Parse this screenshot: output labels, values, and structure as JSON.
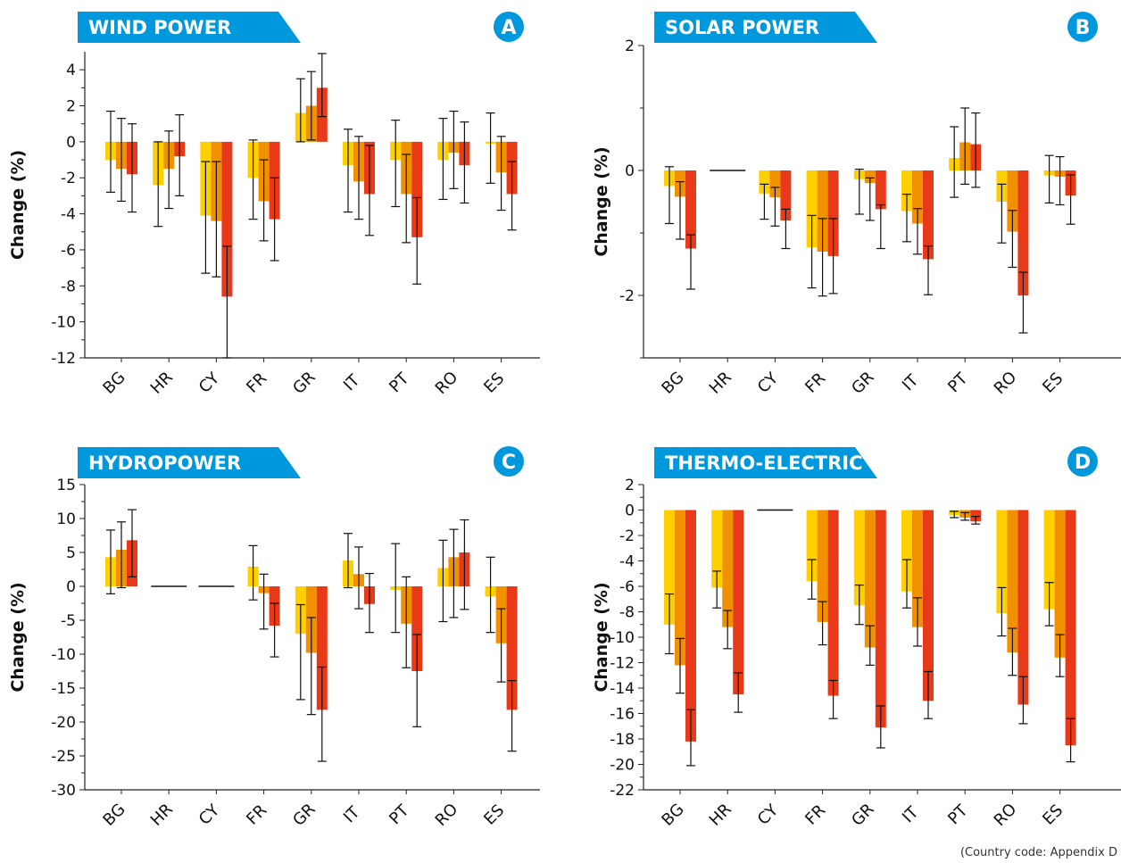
{
  "colors": {
    "banner": "#0098dc",
    "series": [
      "#ffd000",
      "#f29100",
      "#e83a18"
    ]
  },
  "footnote": "(Country code: Appendix D",
  "chart_data": [
    {
      "panel": "A",
      "type": "bar",
      "title": "WIND POWER",
      "ylabel": "Change (%)",
      "ylim": [
        -12,
        5
      ],
      "yticks": [
        4,
        2,
        0,
        -2,
        -4,
        -6,
        -8,
        -10,
        -12
      ],
      "categories": [
        "BG",
        "HR",
        "CY",
        "FR",
        "GR",
        "IT",
        "PT",
        "RO",
        "ES"
      ],
      "series": [
        {
          "values": [
            -1.0,
            -2.4,
            -4.1,
            -2.0,
            1.6,
            -1.3,
            -1.0,
            -1.0,
            -0.1
          ],
          "err_low": [
            -2.8,
            -4.7,
            -7.3,
            -4.3,
            0.0,
            -3.9,
            -3.6,
            -3.2,
            -2.3
          ],
          "err_high": [
            1.7,
            0.0,
            -1.1,
            0.1,
            3.5,
            0.7,
            1.2,
            1.3,
            1.6
          ]
        },
        {
          "values": [
            -1.5,
            -1.5,
            -4.4,
            -3.3,
            2.0,
            -2.2,
            -2.9,
            -0.6,
            -1.7
          ],
          "err_low": [
            -3.3,
            -3.7,
            -7.5,
            -5.5,
            0.1,
            -4.3,
            -5.6,
            -2.6,
            -3.8
          ],
          "err_high": [
            1.3,
            0.6,
            -1.1,
            -1.0,
            3.9,
            0.3,
            -0.7,
            1.7,
            0.3
          ]
        },
        {
          "values": [
            -1.8,
            -0.8,
            -8.6,
            -4.3,
            3.0,
            -2.9,
            -5.3,
            -1.3,
            -2.9
          ],
          "err_low": [
            -3.9,
            -3.0,
            -12.0,
            -6.6,
            1.4,
            -5.2,
            -7.9,
            -3.4,
            -4.9
          ],
          "err_high": [
            1.0,
            1.5,
            -5.8,
            -2.0,
            4.9,
            -0.2,
            -3.1,
            1.1,
            -1.1
          ]
        }
      ]
    },
    {
      "panel": "B",
      "type": "bar",
      "title": "SOLAR POWER",
      "ylabel": "Change (%)",
      "ylim": [
        -3,
        2
      ],
      "yticks": [
        2,
        0,
        -2
      ],
      "categories": [
        "BG",
        "HR",
        "CY",
        "FR",
        "GR",
        "IT",
        "PT",
        "RO",
        "ES"
      ],
      "series": [
        {
          "values": [
            -0.25,
            0.0,
            -0.37,
            -1.23,
            -0.14,
            -0.65,
            0.2,
            -0.5,
            -0.08
          ],
          "err_low": [
            -0.85,
            0.0,
            -0.78,
            -1.88,
            -0.7,
            -1.14,
            -0.43,
            -1.16,
            -0.52
          ],
          "err_high": [
            0.06,
            0.0,
            -0.22,
            -0.72,
            0.02,
            -0.38,
            0.7,
            -0.22,
            0.24
          ]
        },
        {
          "values": [
            -0.42,
            0.0,
            -0.43,
            -1.3,
            -0.2,
            -0.85,
            0.45,
            -0.98,
            -0.1
          ],
          "err_low": [
            -1.1,
            0.0,
            -0.89,
            -2.01,
            -0.8,
            -1.34,
            -0.22,
            -1.55,
            -0.55
          ],
          "err_high": [
            -0.18,
            0.0,
            -0.27,
            -0.77,
            -0.12,
            -0.61,
            1.0,
            -0.64,
            0.22
          ]
        },
        {
          "values": [
            -1.25,
            0.0,
            -0.8,
            -1.37,
            -0.62,
            -1.42,
            0.42,
            -2.0,
            -0.4
          ],
          "err_low": [
            -1.9,
            0.0,
            -1.25,
            -1.97,
            -1.25,
            -1.99,
            -0.27,
            -2.6,
            -0.86
          ],
          "err_high": [
            -1.03,
            0.0,
            -0.62,
            -0.77,
            -0.55,
            -1.21,
            0.92,
            -1.63,
            -0.07
          ]
        }
      ]
    },
    {
      "panel": "C",
      "type": "bar",
      "title": "HYDROPOWER",
      "ylabel": "Change (%)",
      "ylim": [
        -30,
        15
      ],
      "yticks": [
        15,
        10,
        5,
        0,
        -5,
        -10,
        -15,
        -20,
        -25,
        -30
      ],
      "categories": [
        "BG",
        "HR",
        "CY",
        "FR",
        "GR",
        "IT",
        "PT",
        "RO",
        "ES"
      ],
      "series": [
        {
          "values": [
            4.3,
            0.0,
            0.0,
            2.9,
            -7.0,
            3.8,
            -0.5,
            2.7,
            -1.5
          ],
          "err_low": [
            -1.1,
            0.0,
            0.0,
            -2.0,
            -16.7,
            -0.2,
            -6.8,
            -5.2,
            -6.8
          ],
          "err_high": [
            8.3,
            0.0,
            0.0,
            6.0,
            -2.7,
            7.8,
            6.3,
            6.8,
            4.3
          ]
        },
        {
          "values": [
            5.4,
            0.0,
            0.0,
            -1.0,
            -9.8,
            1.8,
            -5.5,
            4.3,
            -8.4
          ],
          "err_low": [
            -0.2,
            0.0,
            0.0,
            -6.3,
            -18.9,
            -3.3,
            -12.0,
            -4.6,
            -14.1
          ],
          "err_high": [
            9.5,
            0.0,
            0.0,
            1.8,
            -4.6,
            5.8,
            1.4,
            8.4,
            -3.3
          ]
        },
        {
          "values": [
            6.8,
            0.0,
            0.0,
            -5.8,
            -18.2,
            -2.6,
            -12.5,
            5.0,
            -18.2
          ],
          "err_low": [
            1.4,
            0.0,
            0.0,
            -10.4,
            -25.8,
            -6.8,
            -20.7,
            -3.4,
            -24.3
          ],
          "err_high": [
            11.3,
            0.0,
            0.0,
            -2.5,
            -11.9,
            1.9,
            -7.1,
            9.8,
            -13.9
          ]
        }
      ]
    },
    {
      "panel": "D",
      "type": "bar",
      "title": "THERMO-ELECTRIC",
      "ylabel": "Change (%)",
      "ylim": [
        -22,
        2
      ],
      "yticks": [
        2,
        0,
        -2,
        -4,
        -6,
        -8,
        -10,
        -12,
        -14,
        -16,
        -18,
        -20,
        -22
      ],
      "categories": [
        "BG",
        "HR",
        "CY",
        "FR",
        "GR",
        "IT",
        "PT",
        "RO",
        "ES"
      ],
      "series": [
        {
          "values": [
            -9.0,
            -6.1,
            0.0,
            -5.6,
            -7.5,
            -6.4,
            -0.4,
            -8.1,
            -7.8
          ],
          "err_low": [
            -11.3,
            -7.7,
            0.0,
            -7.0,
            -9.0,
            -7.7,
            -0.6,
            -9.9,
            -9.1
          ],
          "err_high": [
            -6.6,
            -4.8,
            0.0,
            -3.9,
            -5.9,
            -3.9,
            -0.1,
            -6.1,
            -5.7
          ]
        },
        {
          "values": [
            -12.2,
            -9.2,
            0.0,
            -8.8,
            -10.8,
            -9.2,
            -0.6,
            -11.2,
            -11.6
          ],
          "err_low": [
            -14.4,
            -10.9,
            0.0,
            -10.6,
            -12.2,
            -10.7,
            -0.8,
            -13.0,
            -13.1
          ],
          "err_high": [
            -10.1,
            -7.9,
            0.0,
            -7.2,
            -9.1,
            -6.9,
            -0.2,
            -9.3,
            -9.8
          ]
        },
        {
          "values": [
            -18.2,
            -14.5,
            0.0,
            -14.6,
            -17.1,
            -15.0,
            -0.9,
            -15.3,
            -18.5
          ],
          "err_low": [
            -20.1,
            -15.9,
            0.0,
            -16.4,
            -18.7,
            -16.4,
            -1.1,
            -16.8,
            -19.8
          ],
          "err_high": [
            -15.7,
            -12.8,
            0.0,
            -13.4,
            -15.4,
            -12.7,
            -0.5,
            -13.1,
            -16.4
          ]
        }
      ]
    }
  ]
}
